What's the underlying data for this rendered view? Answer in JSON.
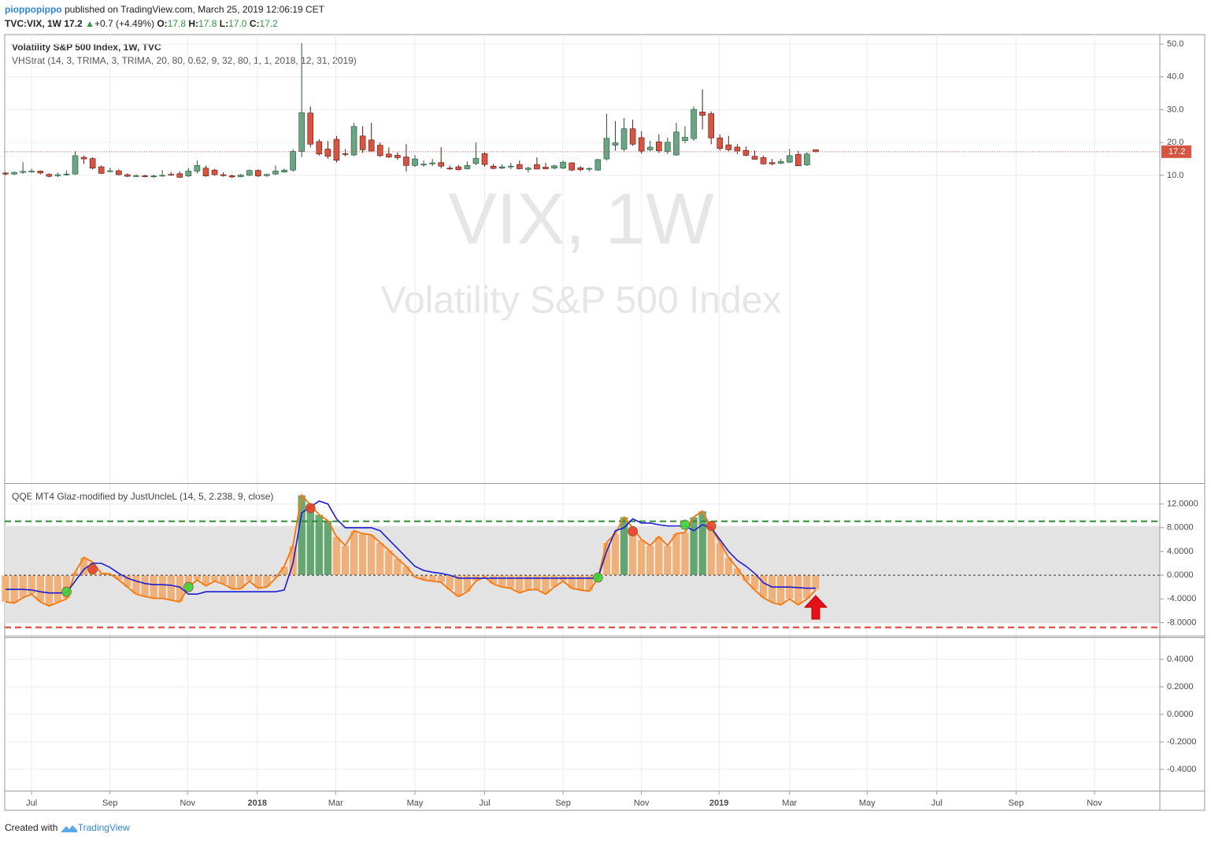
{
  "header": {
    "author": "pioppopippo",
    "published": " published on TradingView.com, March 25, 2019 12:06:19 CET",
    "symbol": "TVC:VIX, 1W",
    "last": "17.2",
    "change": "+0.7 (+4.49%)",
    "ohlc": [
      {
        "label": "O:",
        "value": "17.8"
      },
      {
        "label": "H:",
        "value": "17.8"
      },
      {
        "label": "L:",
        "value": "17.0"
      },
      {
        "label": "C:",
        "value": "17.2"
      }
    ]
  },
  "chart_data": [
    {
      "type": "candlestick",
      "title": "Volatility S&P 500 Index, 1W, TVC",
      "indicator": "VHStrat (14, 3, TRIMA, 3, TRIMA, 20, 80, 0.62, 9, 32, 80, 1, 1, 2018, 12, 31, 2019)",
      "watermark": [
        "VIX, 1W",
        "Volatility S&P 500 Index"
      ],
      "up_color": "#6ba583",
      "down_color": "#d75442",
      "price_line_color": "#d75442",
      "open": [
        10.7,
        10.4,
        10.9,
        11.2,
        11.3,
        10.3,
        9.9,
        10.3,
        10.4,
        15.5,
        15.1,
        12.6,
        11.2,
        11.4,
        10.2,
        9.8,
        9.9,
        9.6,
        9.8,
        10.3,
        10.5,
        9.8,
        11.3,
        12.2,
        11.6,
        10.2,
        9.9,
        9.6,
        10.0,
        11.5,
        9.9,
        10.4,
        11.0,
        11.6,
        17.3,
        29.0,
        20.3,
        18.0,
        21.0,
        16.6,
        16.2,
        22.0,
        20.8,
        19.2,
        16.5,
        16.1,
        15.6,
        13.0,
        13.2,
        13.5,
        13.9,
        12.2,
        12.6,
        12.0,
        13.6,
        16.6,
        12.8,
        12.2,
        12.6,
        13.3,
        11.8,
        13.3,
        12.5,
        12.2,
        12.2,
        13.8,
        12.3,
        11.9,
        11.6,
        15.0,
        19.2,
        18.0,
        24.2,
        21.5,
        17.8,
        20.2,
        17.3,
        16.2,
        20.6,
        21.2,
        29.3,
        28.8,
        21.4,
        19.3,
        18.6,
        17.6,
        15.8,
        15.4,
        13.9,
        13.7,
        14.0,
        16.4,
        13.2,
        17.8
      ],
      "high": [
        11.0,
        11.2,
        14.0,
        12.0,
        11.5,
        10.6,
        10.8,
        11.5,
        17.3,
        16.0,
        15.5,
        13.0,
        12.3,
        11.8,
        10.6,
        10.4,
        10.2,
        10.2,
        11.6,
        11.0,
        11.2,
        12.2,
        14.5,
        13.0,
        12.0,
        10.9,
        10.2,
        10.4,
        11.8,
        11.8,
        10.5,
        13.0,
        12.0,
        18.0,
        50.3,
        31.0,
        21.0,
        20.5,
        22.0,
        18.0,
        26.0,
        25.0,
        26.0,
        20.0,
        18.5,
        17.0,
        19.5,
        16.2,
        14.5,
        15.0,
        18.6,
        13.0,
        13.2,
        14.2,
        20.0,
        17.0,
        13.5,
        13.4,
        13.8,
        14.5,
        12.6,
        15.5,
        13.8,
        13.2,
        14.5,
        14.0,
        12.8,
        12.4,
        15.0,
        28.8,
        26.5,
        27.5,
        27.0,
        23.5,
        20.5,
        22.5,
        21.5,
        26.0,
        25.0,
        31.0,
        36.2,
        29.5,
        22.5,
        22.0,
        19.5,
        18.8,
        17.5,
        16.0,
        15.0,
        15.0,
        18.0,
        17.5,
        17.0,
        17.8
      ],
      "low": [
        10.0,
        10.1,
        10.5,
        10.8,
        10.3,
        9.4,
        9.5,
        9.9,
        10.1,
        13.5,
        11.8,
        10.4,
        10.9,
        10.0,
        9.5,
        9.5,
        9.4,
        9.2,
        9.6,
        9.9,
        9.2,
        9.5,
        10.6,
        9.6,
        9.9,
        9.6,
        9.2,
        9.4,
        9.8,
        9.5,
        9.6,
        10.1,
        10.8,
        11.1,
        15.6,
        18.5,
        16.0,
        15.0,
        13.9,
        15.8,
        15.9,
        16.8,
        17.2,
        15.6,
        15.3,
        14.7,
        11.2,
        12.6,
        12.6,
        12.8,
        12.1,
        11.6,
        11.5,
        11.8,
        13.1,
        12.6,
        11.9,
        11.9,
        11.9,
        11.8,
        10.9,
        11.9,
        11.8,
        11.8,
        11.9,
        11.3,
        11.2,
        11.2,
        11.4,
        14.5,
        17.5,
        17.2,
        19.0,
        16.6,
        17.3,
        16.8,
        16.5,
        16.0,
        19.8,
        20.5,
        24.0,
        19.5,
        17.5,
        17.3,
        16.5,
        15.8,
        14.8,
        13.3,
        13.1,
        13.4,
        13.8,
        12.8,
        12.9,
        17.0
      ],
      "close": [
        10.4,
        10.9,
        11.2,
        11.3,
        10.7,
        9.7,
        10.2,
        10.4,
        16.0,
        15.0,
        12.2,
        10.6,
        11.4,
        10.2,
        9.7,
        9.9,
        9.6,
        9.8,
        10.0,
        10.1,
        9.4,
        11.3,
        13.0,
        9.8,
        10.2,
        9.9,
        9.5,
        10.1,
        11.5,
        9.8,
        10.3,
        11.3,
        11.6,
        17.3,
        29.1,
        19.5,
        16.5,
        15.8,
        14.6,
        16.5,
        24.9,
        17.8,
        17.4,
        16.0,
        15.6,
        15.4,
        13.0,
        15.0,
        13.4,
        13.8,
        12.8,
        12.0,
        11.7,
        13.0,
        15.2,
        13.3,
        12.1,
        12.6,
        12.8,
        12.0,
        12.2,
        11.9,
        12.0,
        12.9,
        14.0,
        11.6,
        11.7,
        12.1,
        14.8,
        21.3,
        19.9,
        24.2,
        19.5,
        17.4,
        18.6,
        17.5,
        20.1,
        23.2,
        21.6,
        30.1,
        28.3,
        21.4,
        18.2,
        17.8,
        17.4,
        16.1,
        14.9,
        13.5,
        13.5,
        14.2,
        16.0,
        12.9,
        16.5,
        17.2
      ],
      "ylim": [
        -83.8,
        52.9
      ],
      "yticks": [
        {
          "value": 10,
          "label": "10.0"
        },
        {
          "value": 20,
          "label": "20.0"
        },
        {
          "value": 30,
          "label": "30.0"
        },
        {
          "value": 40,
          "label": "40.0"
        },
        {
          "value": 50,
          "label": "50.0"
        }
      ],
      "xlim": [
        -0.09,
        132.5
      ],
      "xticks": [
        {
          "value": 3.0,
          "label": "Jul"
        },
        {
          "value": 12.0,
          "label": "Sep"
        },
        {
          "value": 20.9,
          "label": "Nov"
        },
        {
          "value": 28.9,
          "label": "2018"
        },
        {
          "value": 37.9,
          "label": "Mar"
        },
        {
          "value": 47.0,
          "label": "May"
        },
        {
          "value": 55.0,
          "label": "Jul"
        },
        {
          "value": 64.0,
          "label": "Sep"
        },
        {
          "value": 73.0,
          "label": "Nov"
        },
        {
          "value": 81.9,
          "label": "2019"
        },
        {
          "value": 90.0,
          "label": "Mar"
        },
        {
          "value": 98.9,
          "label": "May"
        },
        {
          "value": 106.9,
          "label": "Jul"
        },
        {
          "value": 116.0,
          "label": "Sep"
        },
        {
          "value": 125.0,
          "label": "Nov"
        }
      ],
      "grid": true
    },
    {
      "type": "qqe",
      "title": "QQE MT4 Glaz-modified by JustUncleL (14, 5, 2.238, 9, close)",
      "ylim": [
        -10.2,
        15.4
      ],
      "yticks": [
        {
          "value": 12,
          "label": "12.0000"
        },
        {
          "value": 8,
          "label": "8.0000"
        },
        {
          "value": 4,
          "label": "4.0000"
        },
        {
          "value": 0,
          "label": "0.0000"
        },
        {
          "value": -4,
          "label": "-4.0000"
        },
        {
          "value": -8,
          "label": "-8.0000"
        }
      ],
      "upper_level": 9.08,
      "upper_color": "#2e8b2e",
      "lower_level": -8.8,
      "lower_color": "#e53935",
      "zero_line": 0,
      "band": [
        -8.1,
        8.3
      ],
      "band_color": "#e3e3e3",
      "histogram": true,
      "hist_color": "#f0a868",
      "hist_high_color": "#4f9a5a",
      "series": [
        {
          "color": "#f07d19",
          "values": [
            -4.5,
            -4.7,
            -3.8,
            -3.2,
            -4.5,
            -5.2,
            -4.6,
            -4.0,
            0.5,
            3.0,
            2.2,
            0.3,
            0.2,
            -0.8,
            -2.0,
            -3.2,
            -3.6,
            -3.9,
            -3.9,
            -4.2,
            -4.5,
            -2.0,
            -0.8,
            -1.8,
            -1.0,
            -1.5,
            -2.3,
            -2.3,
            -1.0,
            -2.2,
            -2.0,
            -0.5,
            1.5,
            5.0,
            13.5,
            11.8,
            10.2,
            9.2,
            6.5,
            5.0,
            7.5,
            7.0,
            6.8,
            5.5,
            4.2,
            2.8,
            1.5,
            -0.3,
            -0.8,
            -1.0,
            -1.2,
            -2.5,
            -3.6,
            -2.8,
            -1.0,
            -0.3,
            -1.5,
            -2.0,
            -2.2,
            -3.0,
            -2.5,
            -2.4,
            -3.2,
            -2.0,
            -1.0,
            -2.2,
            -2.5,
            -2.7,
            -0.5,
            5.5,
            7.0,
            9.8,
            8.0,
            6.0,
            5.0,
            6.5,
            5.0,
            7.0,
            7.2,
            9.8,
            10.8,
            8.0,
            5.5,
            3.0,
            1.2,
            -1.0,
            -2.5,
            -3.8,
            -4.6,
            -5.0,
            -4.0,
            -5.0,
            -4.0,
            -2.5
          ]
        },
        {
          "color": "#1c1cd6",
          "values": [
            -2.4,
            -2.4,
            -2.4,
            -2.5,
            -2.8,
            -3.0,
            -3.0,
            -3.0,
            -1.0,
            1.0,
            2.0,
            2.0,
            1.3,
            0.3,
            -0.5,
            -1.0,
            -1.4,
            -1.6,
            -1.6,
            -1.7,
            -2.0,
            -3.2,
            -3.2,
            -2.8,
            -2.8,
            -2.8,
            -2.8,
            -2.8,
            -2.8,
            -2.8,
            -2.8,
            -2.8,
            -2.5,
            2.0,
            10.5,
            11.5,
            12.5,
            12.0,
            9.5,
            8.0,
            8.0,
            8.0,
            8.0,
            7.5,
            6.0,
            4.5,
            3.0,
            1.5,
            0.8,
            0.5,
            0.3,
            0.0,
            -0.5,
            -0.5,
            -0.5,
            -0.5,
            -0.5,
            -0.5,
            -0.5,
            -0.5,
            -0.5,
            -0.5,
            -0.5,
            -0.5,
            -0.5,
            -0.5,
            -0.5,
            -0.5,
            -0.5,
            4.0,
            7.5,
            8.0,
            9.5,
            8.8,
            8.8,
            8.5,
            8.3,
            8.3,
            8.3,
            7.5,
            8.5,
            8.0,
            6.0,
            4.0,
            2.5,
            1.5,
            0.3,
            -1.3,
            -2.0,
            -2.0,
            -2.0,
            -2.1,
            -2.2,
            -2.2
          ]
        }
      ],
      "signals": [
        {
          "index": 7,
          "value": -2.8,
          "color": "#3cd43c"
        },
        {
          "index": 10,
          "value": 1.0,
          "color": "#e8432f"
        },
        {
          "index": 21,
          "value": -2.0,
          "color": "#3cd43c"
        },
        {
          "index": 35,
          "value": 11.3,
          "color": "#e8432f"
        },
        {
          "index": 68,
          "value": -0.4,
          "color": "#3cd43c"
        },
        {
          "index": 72,
          "value": 7.4,
          "color": "#e8432f"
        },
        {
          "index": 78,
          "value": 8.5,
          "color": "#3cd43c"
        },
        {
          "index": 81,
          "value": 8.3,
          "color": "#e8432f"
        }
      ]
    },
    {
      "type": "empty",
      "ylim": [
        -0.554,
        0.56
      ],
      "yticks": [
        {
          "value": 0.4,
          "label": "0.4000"
        },
        {
          "value": 0.2,
          "label": "0.2000"
        },
        {
          "value": 0,
          "label": "0.0000"
        },
        {
          "value": -0.2,
          "label": "-0.2000"
        },
        {
          "value": -0.4,
          "label": "-0.4000"
        }
      ]
    }
  ],
  "footer": {
    "text": "Created with",
    "brand": "TradingView"
  }
}
